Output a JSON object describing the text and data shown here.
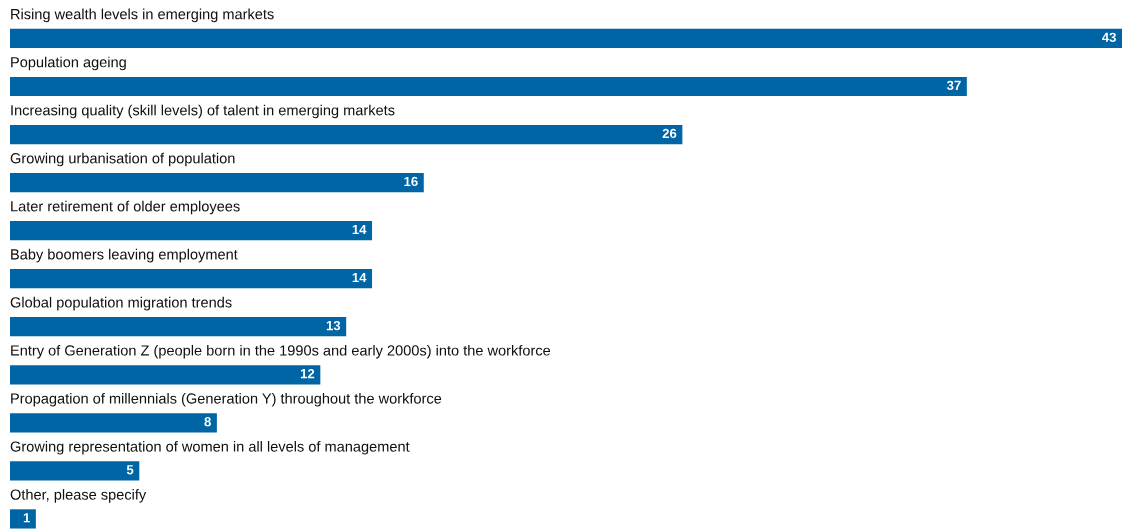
{
  "chart_data": {
    "type": "bar",
    "orientation": "horizontal",
    "color": "#0065a4",
    "data_labels": true,
    "categories": [
      "Rising wealth levels in emerging markets",
      "Population ageing",
      "Increasing quality (skill levels) of talent in emerging markets",
      "Growing urbanisation of population",
      "Later retirement of older employees",
      "Baby boomers leaving employment",
      "Global population migration trends",
      "Entry of Generation Z (people born in the 1990s and early 2000s) into the workforce",
      "Propagation of millennials (Generation Y) throughout the workforce",
      "Growing representation of women in all levels of management",
      "Other, please specify"
    ],
    "values": [
      43,
      37,
      26,
      16,
      14,
      14,
      13,
      12,
      8,
      5,
      1
    ]
  }
}
